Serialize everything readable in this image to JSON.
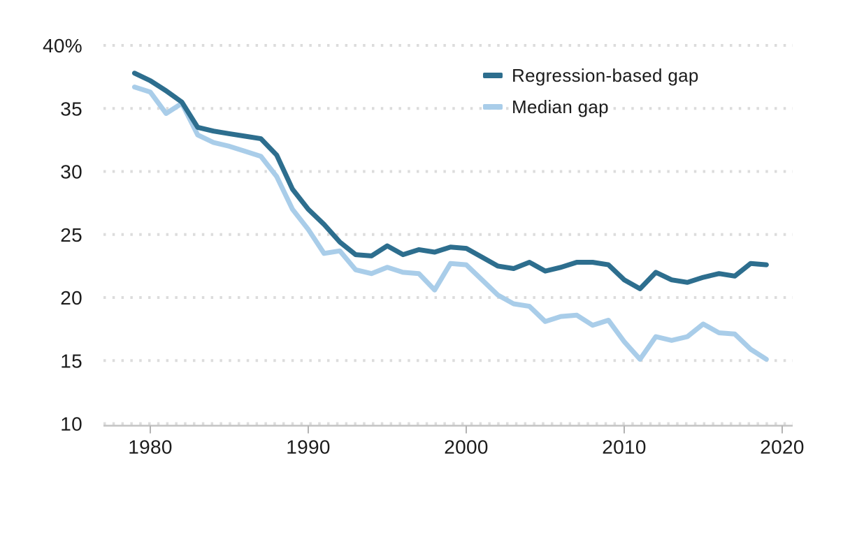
{
  "page": {
    "background": "#ffffff"
  },
  "chart_data": {
    "type": "line",
    "title": "",
    "xlabel": "",
    "ylabel": "",
    "x": [
      1979,
      1980,
      1981,
      1982,
      1983,
      1984,
      1985,
      1986,
      1987,
      1988,
      1989,
      1990,
      1991,
      1992,
      1993,
      1994,
      1995,
      1996,
      1997,
      1998,
      1999,
      2000,
      2001,
      2002,
      2003,
      2004,
      2005,
      2006,
      2007,
      2008,
      2009,
      2010,
      2011,
      2012,
      2013,
      2014,
      2015,
      2016,
      2017,
      2018,
      2019
    ],
    "series": [
      {
        "name": "Regression-based gap",
        "color": "#2d6e8e",
        "values": [
          37.8,
          37.2,
          36.4,
          35.5,
          33.5,
          33.2,
          33.0,
          32.8,
          32.6,
          31.3,
          28.6,
          27.0,
          25.8,
          24.4,
          23.4,
          23.3,
          24.1,
          23.4,
          23.8,
          23.6,
          24.0,
          23.9,
          23.2,
          22.5,
          22.3,
          22.8,
          22.1,
          22.4,
          22.8,
          22.8,
          22.6,
          21.4,
          20.7,
          22.0,
          21.4,
          21.2,
          21.6,
          21.9,
          21.7,
          22.7,
          22.6
        ]
      },
      {
        "name": "Median gap",
        "color": "#a9cde9",
        "values": [
          36.7,
          36.3,
          34.6,
          35.4,
          32.9,
          32.3,
          32.0,
          31.6,
          31.2,
          29.6,
          27.0,
          25.4,
          23.5,
          23.7,
          22.2,
          21.9,
          22.4,
          22.0,
          21.9,
          20.6,
          22.7,
          22.6,
          21.4,
          20.2,
          19.5,
          19.3,
          18.1,
          18.5,
          18.6,
          17.8,
          18.2,
          16.5,
          15.1,
          16.9,
          16.6,
          16.9,
          17.9,
          17.2,
          17.1,
          15.9,
          15.1
        ]
      }
    ],
    "y_ticks": [
      40,
      35,
      30,
      25,
      20,
      15,
      10
    ],
    "y_tick_labels": [
      "40%",
      "35",
      "30",
      "25",
      "20",
      "15",
      "10"
    ],
    "x_ticks": [
      1980,
      1990,
      2000,
      2010,
      2020
    ],
    "x_tick_labels": [
      "1980",
      "1990",
      "2000",
      "2010",
      "2020"
    ],
    "ylim": [
      10,
      40
    ],
    "xlim": [
      1977,
      2020.6
    ],
    "grid": "dotted-horizontal",
    "legend_position": "top-right-inside",
    "colors": {
      "grid": "#dcdcdc",
      "axis": "#c4c4c4",
      "tick": "#b3b3b3",
      "text": "#1c1c1c",
      "background": "#ffffff"
    }
  }
}
